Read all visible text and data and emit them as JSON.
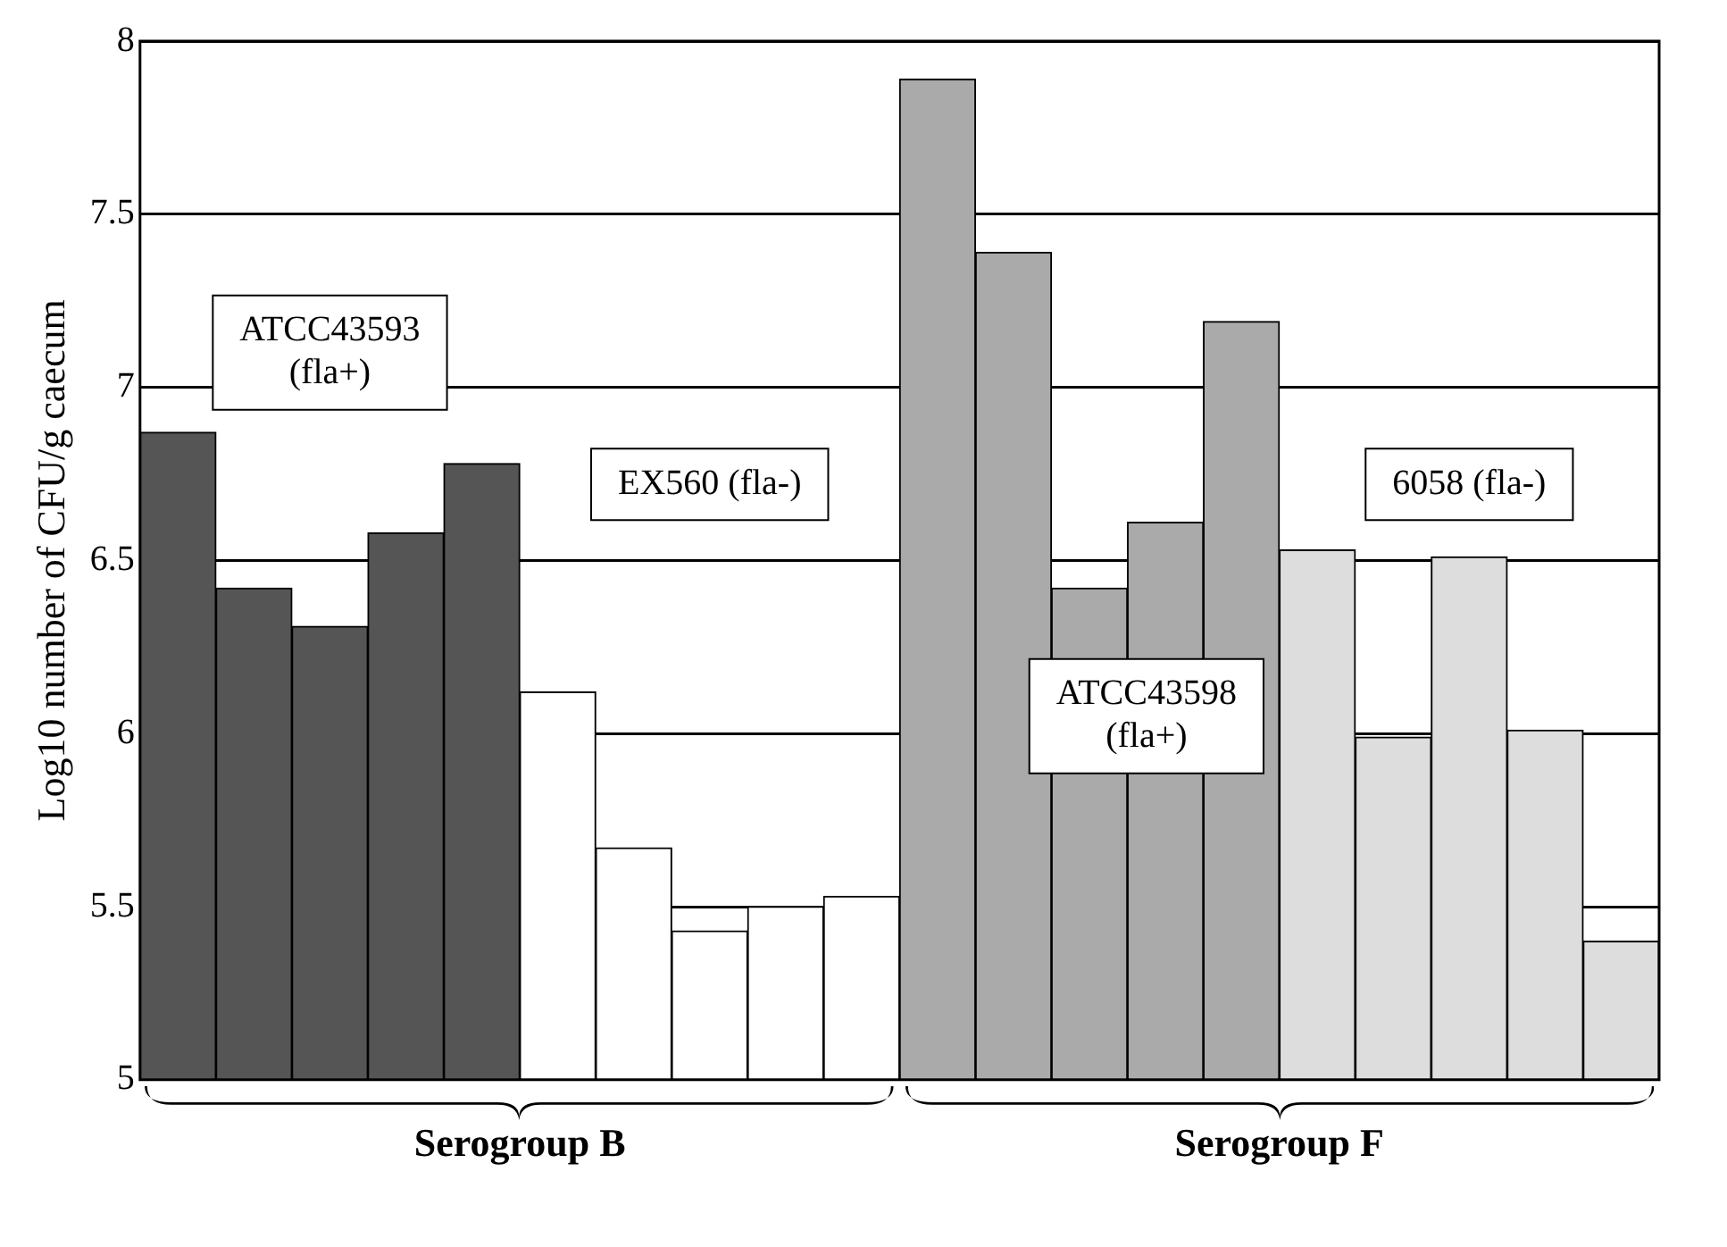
{
  "chart_data": {
    "type": "bar",
    "ylabel": "Log10 number of CFU/g caecum",
    "categories": [
      null,
      null,
      null,
      null,
      null,
      null,
      null,
      null,
      null,
      null,
      null,
      null,
      null,
      null,
      null,
      null,
      null,
      null,
      null,
      null
    ],
    "values": [
      6.87,
      6.42,
      6.31,
      6.58,
      6.78,
      6.12,
      5.67,
      5.43,
      5.5,
      5.53,
      7.89,
      7.39,
      6.42,
      6.61,
      7.19,
      6.53,
      5.99,
      6.51,
      6.01,
      5.4
    ],
    "colors": [
      "#555555",
      "#555555",
      "#555555",
      "#555555",
      "#555555",
      "#ffffff",
      "#ffffff",
      "#ffffff",
      "#ffffff",
      "#ffffff",
      "#aaaaaa",
      "#aaaaaa",
      "#aaaaaa",
      "#aaaaaa",
      "#aaaaaa",
      "#dddddd",
      "#dddddd",
      "#dddddd",
      "#dddddd",
      "#dddddd"
    ],
    "ylim": [
      5,
      8
    ],
    "yticks": [
      5,
      5.5,
      6,
      6.5,
      7,
      7.5,
      8
    ],
    "grid": "y",
    "legend": false,
    "annotations": [
      "ATCC43593\n(fla+)",
      "EX560 (fla-)",
      "ATCC43598\n(fla+)",
      "6058 (fla-)",
      "Serogroup B",
      "Serogroup F"
    ]
  }
}
